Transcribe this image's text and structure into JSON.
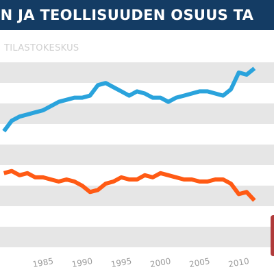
{
  "title": "EN JA TEOLLISUUDEN OSUUS TA",
  "source": "TILASTOKESKUS",
  "colors": {
    "title_bg": "#143c64",
    "blue_series": "#2aa3dc",
    "orange_series": "#ff5a14",
    "band_gray": "#e6e6e6",
    "corner_box": "#b03a3a"
  },
  "chart_data": {
    "type": "line",
    "xlabel": "",
    "ylabel": "",
    "xlim": [
      1979.5,
      2014.5
    ],
    "ylim": [
      0,
      100
    ],
    "grid": "alternating gray horizontal bands",
    "legend": "none",
    "x_ticks": [
      "1985",
      "1990",
      "1995",
      "2000",
      "2005",
      "2010"
    ],
    "series": [
      {
        "color": "#2aa3dc",
        "x": [
          1980,
          1981,
          1982,
          1983,
          1984,
          1985,
          1986,
          1987,
          1988,
          1989,
          1990,
          1991,
          1992,
          1993,
          1994,
          1995,
          1996,
          1997,
          1998,
          1999,
          2000,
          2001,
          2002,
          2003,
          2004,
          2005,
          2006,
          2007,
          2008,
          2009,
          2010,
          2011,
          2012
        ],
        "values": [
          57,
          62,
          64,
          65,
          66,
          67,
          69,
          71,
          72,
          73,
          73,
          74,
          79,
          80,
          78,
          76,
          74,
          76,
          75,
          73,
          73,
          71,
          73,
          74,
          75,
          76,
          76,
          75,
          74,
          77,
          85,
          84,
          87
        ]
      },
      {
        "color": "#ff5a14",
        "x": [
          1980,
          1981,
          1982,
          1983,
          1984,
          1985,
          1986,
          1987,
          1988,
          1989,
          1990,
          1991,
          1992,
          1993,
          1994,
          1995,
          1996,
          1997,
          1998,
          1999,
          2000,
          2001,
          2002,
          2003,
          2004,
          2005,
          2006,
          2007,
          2008,
          2009,
          2010,
          2011,
          2012
        ],
        "values": [
          37,
          38,
          36,
          37,
          35,
          35,
          34,
          33,
          34,
          33,
          31,
          28,
          29,
          32,
          33,
          35,
          34,
          34,
          36,
          35,
          37,
          36,
          35,
          34,
          34,
          33,
          33,
          34,
          34,
          32,
          27,
          28,
          24
        ]
      }
    ]
  }
}
